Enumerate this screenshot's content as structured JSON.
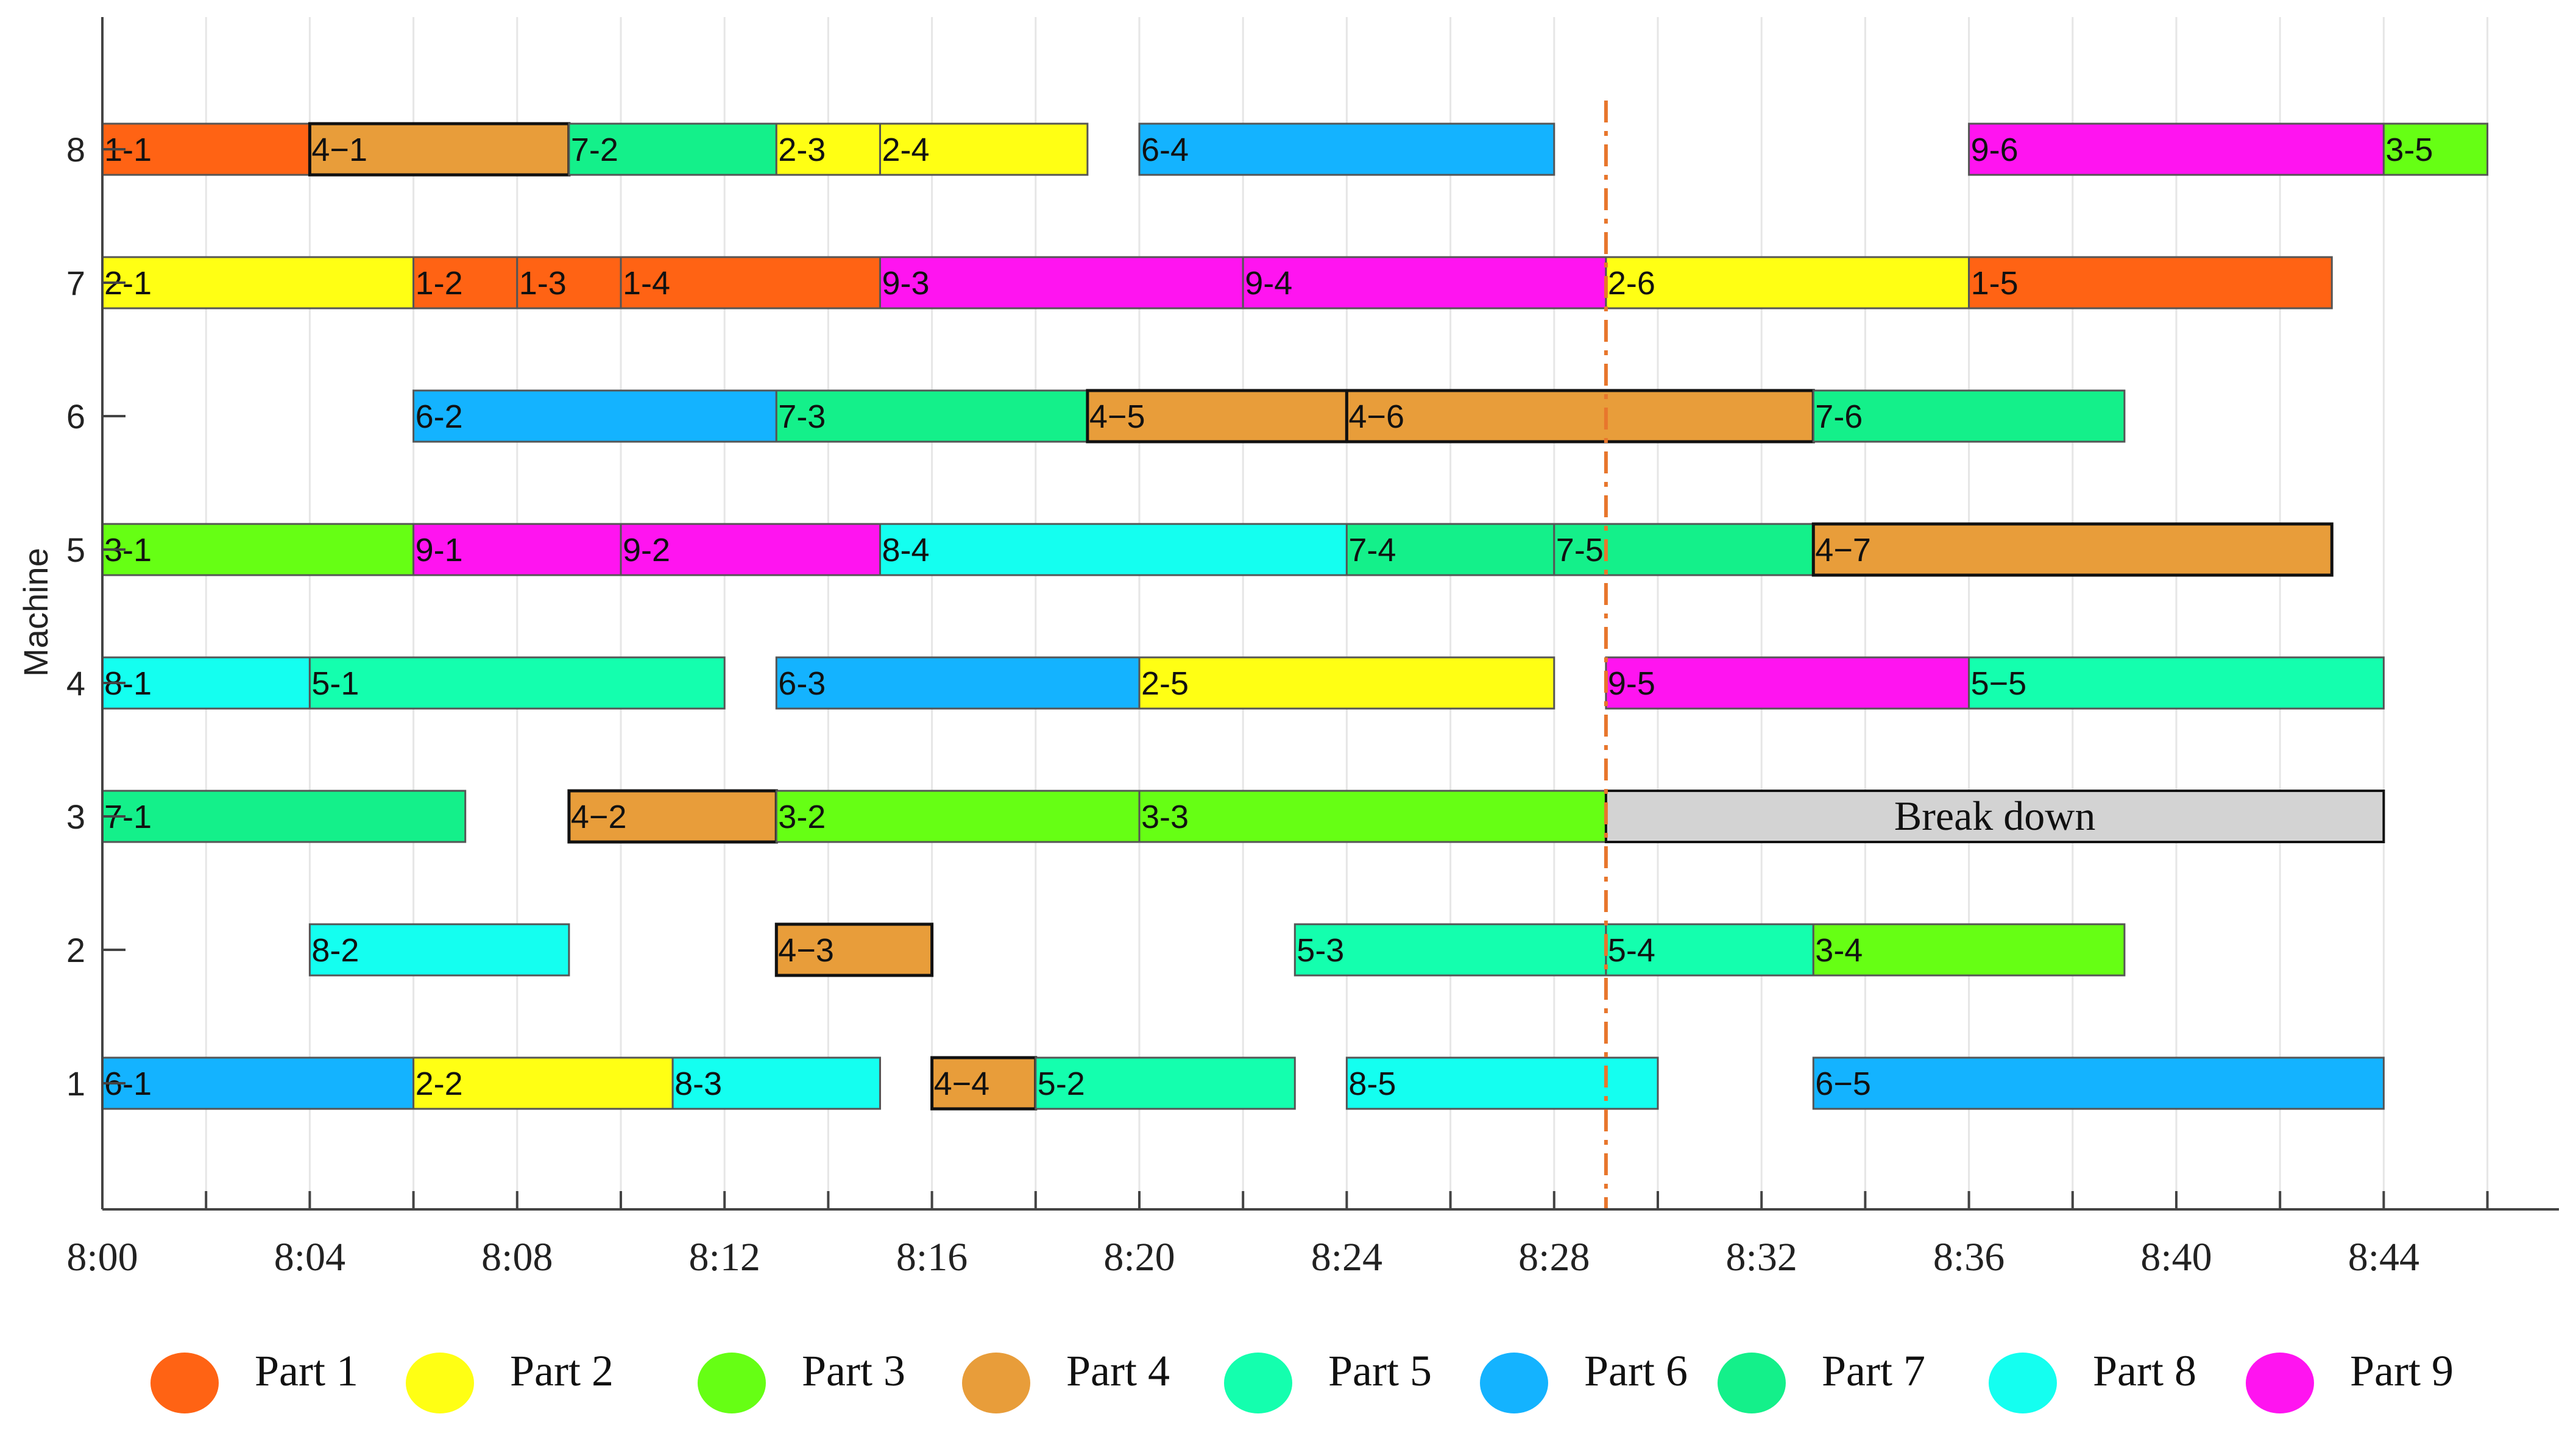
{
  "chart_data": {
    "type": "gantt",
    "ylabel": "Machine",
    "xlabel": "",
    "x_start": "8:00",
    "xlim_minutes": [
      0,
      47
    ],
    "ylim": [
      0,
      9
    ],
    "x_ticks": [
      {
        "minute": 0,
        "label": "8:00"
      },
      {
        "minute": 4,
        "label": "8:04"
      },
      {
        "minute": 8,
        "label": "8:08"
      },
      {
        "minute": 12,
        "label": "8:12"
      },
      {
        "minute": 16,
        "label": "8:16"
      },
      {
        "minute": 20,
        "label": "8:20"
      },
      {
        "minute": 24,
        "label": "8:24"
      },
      {
        "minute": 28,
        "label": "8:28"
      },
      {
        "minute": 32,
        "label": "8:32"
      },
      {
        "minute": 36,
        "label": "8:36"
      },
      {
        "minute": 40,
        "label": "8:40"
      },
      {
        "minute": 44,
        "label": "8:44"
      }
    ],
    "y_ticks": [
      "1",
      "2",
      "3",
      "4",
      "5",
      "6",
      "7",
      "8"
    ],
    "breakdown_line_minute": 29,
    "parts": [
      {
        "name": "Part 1",
        "color": "#ff6314"
      },
      {
        "name": "Part 2",
        "color": "#ffff14"
      },
      {
        "name": "Part 3",
        "color": "#66ff14"
      },
      {
        "name": "Part 4",
        "color": "#e89d3a"
      },
      {
        "name": "Part 5",
        "color": "#14ffae"
      },
      {
        "name": "Part 6",
        "color": "#14b3ff"
      },
      {
        "name": "Part 7",
        "color": "#14f08a"
      },
      {
        "name": "Part 8",
        "color": "#14fff0"
      },
      {
        "name": "Part 9",
        "color": "#ff14f0"
      }
    ],
    "breakdown": {
      "machine": 3,
      "start": 29,
      "end": 44,
      "label": "Break down"
    },
    "operations": [
      {
        "machine": 8,
        "part": 1,
        "label": "1-1",
        "start": 0,
        "end": 4
      },
      {
        "machine": 8,
        "part": 4,
        "label": "4−1",
        "start": 4,
        "end": 9
      },
      {
        "machine": 8,
        "part": 7,
        "label": "7-2",
        "start": 9,
        "end": 13
      },
      {
        "machine": 8,
        "part": 2,
        "label": "2-3",
        "start": 13,
        "end": 15
      },
      {
        "machine": 8,
        "part": 2,
        "label": "2-4",
        "start": 15,
        "end": 19
      },
      {
        "machine": 8,
        "part": 6,
        "label": "6-4",
        "start": 20,
        "end": 28
      },
      {
        "machine": 8,
        "part": 9,
        "label": "9-6",
        "start": 36,
        "end": 44
      },
      {
        "machine": 8,
        "part": 3,
        "label": "3-5",
        "start": 44,
        "end": 46
      },
      {
        "machine": 7,
        "part": 2,
        "label": "2-1",
        "start": 0,
        "end": 6
      },
      {
        "machine": 7,
        "part": 1,
        "label": "1-2",
        "start": 6,
        "end": 8
      },
      {
        "machine": 7,
        "part": 1,
        "label": "1-3",
        "start": 8,
        "end": 10
      },
      {
        "machine": 7,
        "part": 1,
        "label": "1-4",
        "start": 10,
        "end": 15
      },
      {
        "machine": 7,
        "part": 9,
        "label": "9-3",
        "start": 15,
        "end": 22
      },
      {
        "machine": 7,
        "part": 9,
        "label": "9-4",
        "start": 22,
        "end": 29
      },
      {
        "machine": 7,
        "part": 2,
        "label": "2-6",
        "start": 29,
        "end": 36
      },
      {
        "machine": 7,
        "part": 1,
        "label": "1-5",
        "start": 36,
        "end": 43
      },
      {
        "machine": 6,
        "part": 6,
        "label": "6-2",
        "start": 6,
        "end": 13
      },
      {
        "machine": 6,
        "part": 7,
        "label": "7-3",
        "start": 13,
        "end": 19
      },
      {
        "machine": 6,
        "part": 4,
        "label": "4−5",
        "start": 19,
        "end": 24
      },
      {
        "machine": 6,
        "part": 4,
        "label": "4−6",
        "start": 24,
        "end": 33
      },
      {
        "machine": 6,
        "part": 7,
        "label": "7-6",
        "start": 33,
        "end": 39
      },
      {
        "machine": 5,
        "part": 3,
        "label": "3-1",
        "start": 0,
        "end": 6
      },
      {
        "machine": 5,
        "part": 9,
        "label": "9-1",
        "start": 6,
        "end": 10
      },
      {
        "machine": 5,
        "part": 9,
        "label": "9-2",
        "start": 10,
        "end": 15
      },
      {
        "machine": 5,
        "part": 8,
        "label": "8-4",
        "start": 15,
        "end": 24
      },
      {
        "machine": 5,
        "part": 7,
        "label": "7-4",
        "start": 24,
        "end": 28
      },
      {
        "machine": 5,
        "part": 7,
        "label": "7-5",
        "start": 28,
        "end": 33
      },
      {
        "machine": 5,
        "part": 4,
        "label": "4−7",
        "start": 33,
        "end": 43
      },
      {
        "machine": 4,
        "part": 8,
        "label": "8-1",
        "start": 0,
        "end": 4
      },
      {
        "machine": 4,
        "part": 5,
        "label": "5-1",
        "start": 4,
        "end": 12
      },
      {
        "machine": 4,
        "part": 6,
        "label": "6-3",
        "start": 13,
        "end": 20
      },
      {
        "machine": 4,
        "part": 2,
        "label": "2-5",
        "start": 20,
        "end": 28
      },
      {
        "machine": 4,
        "part": 9,
        "label": "9-5",
        "start": 29,
        "end": 36
      },
      {
        "machine": 4,
        "part": 5,
        "label": "5−5",
        "start": 36,
        "end": 44
      },
      {
        "machine": 3,
        "part": 7,
        "label": "7-1",
        "start": 0,
        "end": 7
      },
      {
        "machine": 3,
        "part": 4,
        "label": "4−2",
        "start": 9,
        "end": 13
      },
      {
        "machine": 3,
        "part": 3,
        "label": "3-2",
        "start": 13,
        "end": 20
      },
      {
        "machine": 3,
        "part": 3,
        "label": "3-3",
        "start": 20,
        "end": 29
      },
      {
        "machine": 2,
        "part": 8,
        "label": "8-2",
        "start": 4,
        "end": 9
      },
      {
        "machine": 2,
        "part": 4,
        "label": "4−3",
        "start": 13,
        "end": 16
      },
      {
        "machine": 2,
        "part": 5,
        "label": "5-3",
        "start": 23,
        "end": 29
      },
      {
        "machine": 2,
        "part": 5,
        "label": "5-4",
        "start": 29,
        "end": 33
      },
      {
        "machine": 2,
        "part": 3,
        "label": "3-4",
        "start": 33,
        "end": 39
      },
      {
        "machine": 1,
        "part": 6,
        "label": "6-1",
        "start": 0,
        "end": 6
      },
      {
        "machine": 1,
        "part": 2,
        "label": "2-2",
        "start": 6,
        "end": 11
      },
      {
        "machine": 1,
        "part": 8,
        "label": "8-3",
        "start": 11,
        "end": 15
      },
      {
        "machine": 1,
        "part": 4,
        "label": "4−4",
        "start": 16,
        "end": 18
      },
      {
        "machine": 1,
        "part": 5,
        "label": "5-2",
        "start": 18,
        "end": 23
      },
      {
        "machine": 1,
        "part": 8,
        "label": "8-5",
        "start": 24,
        "end": 30
      },
      {
        "machine": 1,
        "part": 6,
        "label": "6−5",
        "start": 33,
        "end": 44
      }
    ]
  }
}
